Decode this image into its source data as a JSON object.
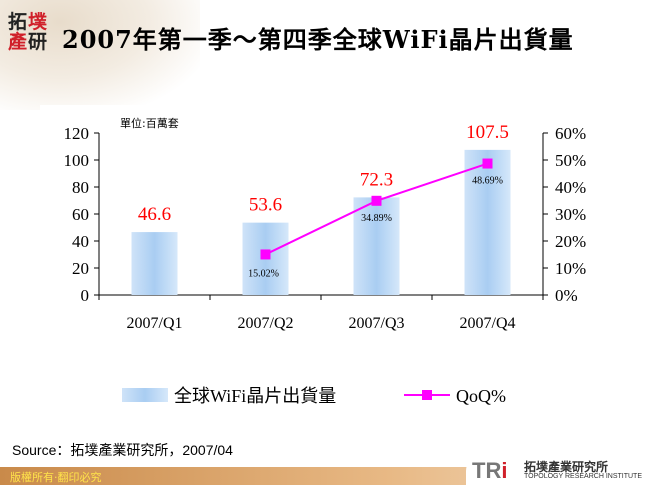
{
  "logo": {
    "chars": [
      "拓",
      "墣",
      "產",
      "研"
    ]
  },
  "title": "2007年第一季～第四季全球WiFi晶片出貨量",
  "source": "Source：拓墣產業研究所，2007/04",
  "footer": "版權所有‧翻印必究",
  "brand": {
    "mark_a": "TR",
    "mark_b": "i",
    "name_cn": "拓墣產業研究所",
    "name_en": "TOPOLOGY RESEARCH INSTITUTE"
  },
  "chart_data": {
    "type": "bar+line",
    "unit_label": "單位:百萬套",
    "categories": [
      "2007/Q1",
      "2007/Q2",
      "2007/Q3",
      "2007/Q4"
    ],
    "series": [
      {
        "name": "全球WiFi晶片出貨量",
        "type": "bar",
        "axis": "left",
        "values": [
          46.6,
          53.6,
          72.3,
          107.5
        ],
        "labels": [
          "46.6",
          "53.6",
          "72.3",
          "107.5"
        ],
        "color": "#a9cdf2"
      },
      {
        "name": "QoQ%",
        "type": "line",
        "axis": "right",
        "values": [
          null,
          15.02,
          34.89,
          48.69
        ],
        "labels": [
          "",
          "15.02%",
          "34.89%",
          "48.69%"
        ],
        "color": "#ff00ff"
      }
    ],
    "y_left": {
      "min": 0,
      "max": 120,
      "ticks": [
        "0",
        "20",
        "40",
        "60",
        "80",
        "100",
        "120"
      ]
    },
    "y_right": {
      "min": 0,
      "max": 60,
      "ticks": [
        "0%",
        "10%",
        "20%",
        "30%",
        "40%",
        "50%",
        "60%"
      ]
    },
    "bar_label_color": "#ff0000",
    "legend_position": "bottom",
    "grid": false
  }
}
